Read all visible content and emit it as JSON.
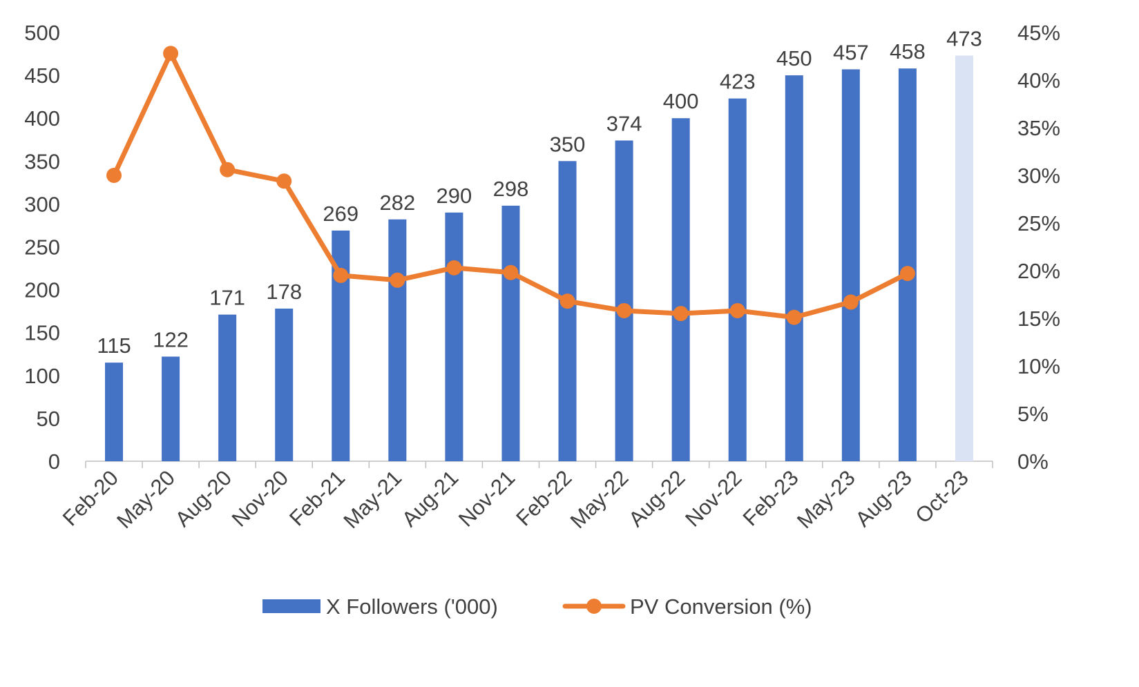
{
  "chart_data": {
    "type": "bar+line",
    "categories": [
      "Feb-20",
      "May-20",
      "Aug-20",
      "Nov-20",
      "Feb-21",
      "May-21",
      "Aug-21",
      "Nov-21",
      "Feb-22",
      "May-22",
      "Aug-22",
      "Nov-22",
      "Feb-23",
      "May-23",
      "Aug-23",
      "Oct-23"
    ],
    "series": [
      {
        "name": "X Followers ('000)",
        "type": "bar",
        "axis": "left",
        "values": [
          115,
          122,
          171,
          178,
          269,
          282,
          290,
          298,
          350,
          374,
          400,
          423,
          450,
          457,
          458,
          473
        ],
        "labels": [
          "115",
          "122",
          "171",
          "178",
          "269",
          "282",
          "290",
          "298",
          "350",
          "374",
          "400",
          "423",
          "450",
          "457",
          "458",
          "473"
        ],
        "color": "#4472C4",
        "highlight_last_color": "#DAE3F3"
      },
      {
        "name": "PV Conversion (%)",
        "type": "line",
        "axis": "right",
        "values": [
          30.0,
          42.8,
          30.6,
          29.4,
          19.5,
          19.0,
          20.3,
          19.8,
          16.8,
          15.8,
          15.5,
          15.8,
          15.1,
          16.7,
          19.7,
          null
        ],
        "color": "#ED7D31"
      }
    ],
    "y_left": {
      "min": 0,
      "max": 500,
      "ticks": [
        "0",
        "50",
        "100",
        "150",
        "200",
        "250",
        "300",
        "350",
        "400",
        "450",
        "500"
      ]
    },
    "y_right": {
      "min": 0,
      "max": 45,
      "ticks": [
        "0%",
        "5%",
        "10%",
        "15%",
        "20%",
        "25%",
        "30%",
        "35%",
        "40%",
        "45%"
      ]
    },
    "grid": false,
    "legend_position": "bottom",
    "title": "",
    "xlabel": "",
    "ylabel": ""
  }
}
